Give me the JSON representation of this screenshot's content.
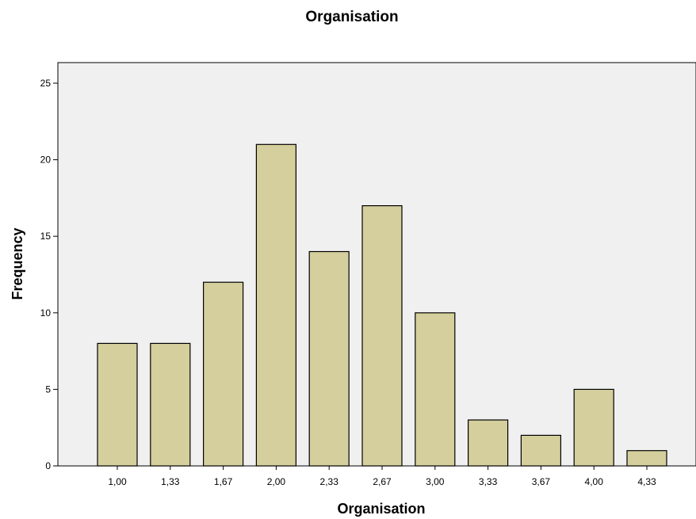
{
  "chart_data": {
    "type": "bar",
    "title": "Organisation",
    "xlabel": "Organisation",
    "ylabel": "Frequency",
    "categories": [
      "1,00",
      "1,33",
      "1,67",
      "2,00",
      "2,33",
      "2,67",
      "3,00",
      "3,33",
      "3,67",
      "4,00",
      "4,33"
    ],
    "values": [
      8,
      8,
      12,
      21,
      14,
      17,
      10,
      3,
      2,
      5,
      1
    ],
    "ylim": [
      0,
      25
    ],
    "yticks": [
      "0",
      "5",
      "10",
      "15",
      "20",
      "25"
    ],
    "grid": false,
    "legend": "none",
    "colors": {
      "bar_fill": "#d4cf9c",
      "bar_stroke": "#000000",
      "plot_background": "#f0f0f0"
    }
  }
}
